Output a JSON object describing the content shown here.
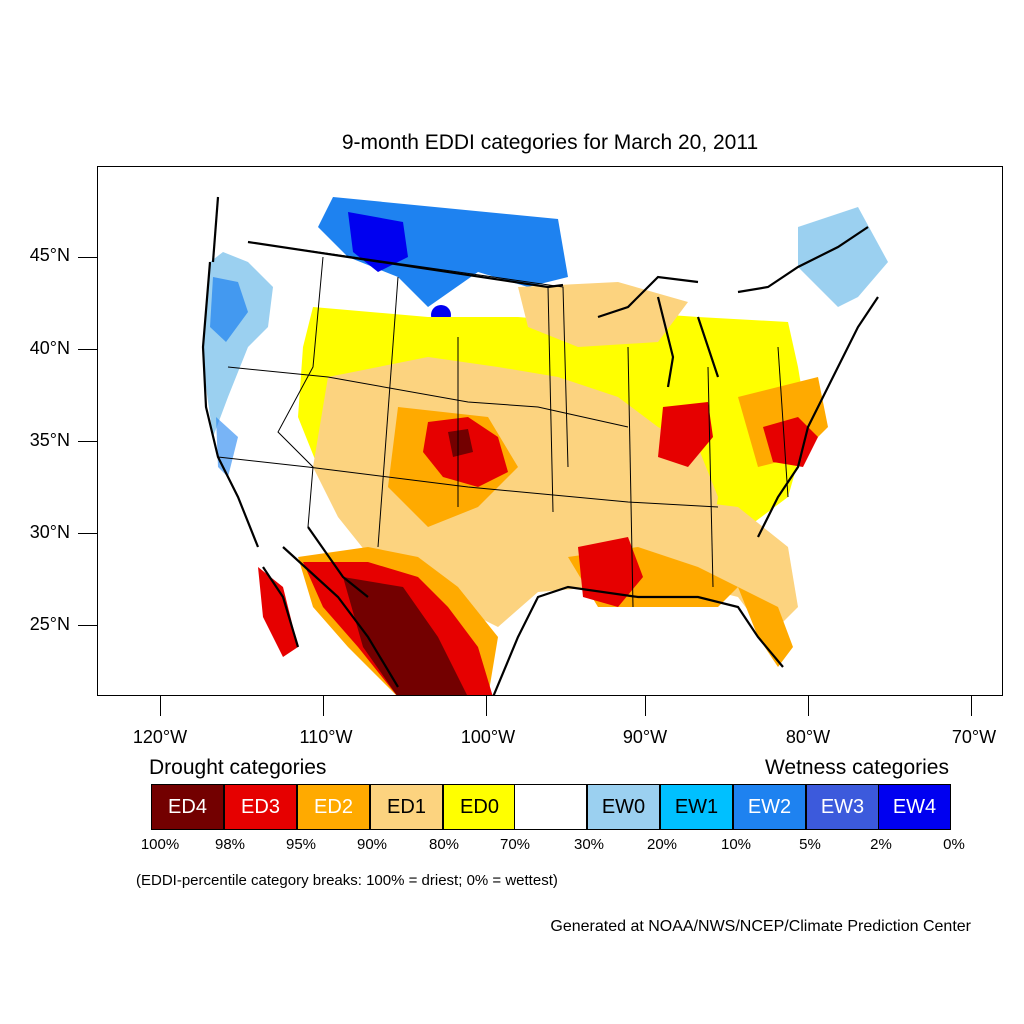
{
  "title": "9-month EDDI categories for March 20, 2011",
  "lat_labels": [
    "45°N",
    "40°N",
    "35°N",
    "30°N",
    "25°N"
  ],
  "lon_labels": [
    "120°W",
    "110°W",
    "100°W",
    "90°W",
    "80°W",
    "70°W"
  ],
  "legend": {
    "drought_heading": "Drought categories",
    "wetness_heading": "Wetness categories",
    "categories": [
      {
        "label": "ED4",
        "color": "#730000",
        "text_color": "#ffffff"
      },
      {
        "label": "ED3",
        "color": "#e60000",
        "text_color": "#ffffff"
      },
      {
        "label": "ED2",
        "color": "#ffaa00",
        "text_color": "#ffffff"
      },
      {
        "label": "ED1",
        "color": "#fcd37f",
        "text_color": "#000000"
      },
      {
        "label": "ED0",
        "color": "#ffff00",
        "text_color": "#000000"
      },
      {
        "label": "",
        "color": "#ffffff",
        "text_color": "#000000"
      },
      {
        "label": "EW0",
        "color": "#9bd0f0",
        "text_color": "#000000"
      },
      {
        "label": "EW1",
        "color": "#00c0ff",
        "text_color": "#000000"
      },
      {
        "label": "EW2",
        "color": "#1e82f0",
        "text_color": "#ffffff"
      },
      {
        "label": "EW3",
        "color": "#3c5adc",
        "text_color": "#ffffff"
      },
      {
        "label": "EW4",
        "color": "#0000f0",
        "text_color": "#ffffff"
      }
    ],
    "breaks": [
      "100%",
      "98%",
      "95%",
      "90%",
      "80%",
      "70%",
      "30%",
      "20%",
      "10%",
      "5%",
      "2%",
      "0%"
    ]
  },
  "footnote": "(EDDI-percentile category breaks: 100% = driest; 0% = wettest)",
  "credit": "Generated at NOAA/NWS/NCEP/Climate Prediction Center"
}
